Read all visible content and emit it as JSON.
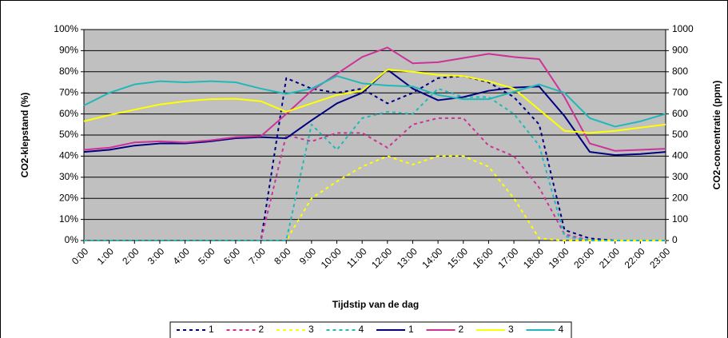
{
  "chart_data": {
    "type": "line",
    "xlabel": "Tijdstip van de dag",
    "ylabel": "CO2-klepstand (%)",
    "y2label": "CO2-concentratie (ppm)",
    "categories": [
      "0:00",
      "1:00",
      "2:00",
      "3:00",
      "4:00",
      "5:00",
      "6:00",
      "7:00",
      "8:00",
      "9:00",
      "10:00",
      "11:00",
      "12:00",
      "13:00",
      "14:00",
      "15:00",
      "16:00",
      "17:00",
      "18:00",
      "19:00",
      "20:00",
      "21:00",
      "22:00",
      "23:00"
    ],
    "ylim": [
      0,
      100
    ],
    "yticks": [
      {
        "value": 0,
        "label": "0%"
      },
      {
        "value": 10,
        "label": "10%"
      },
      {
        "value": 20,
        "label": "20%"
      },
      {
        "value": 30,
        "label": "30%"
      },
      {
        "value": 40,
        "label": "40%"
      },
      {
        "value": 50,
        "label": "50%"
      },
      {
        "value": 60,
        "label": "60%"
      },
      {
        "value": 70,
        "label": "70%"
      },
      {
        "value": 80,
        "label": "80%"
      },
      {
        "value": 90,
        "label": "90%"
      },
      {
        "value": 100,
        "label": "100%"
      }
    ],
    "y2lim": [
      0,
      1000
    ],
    "y2ticks": [
      0,
      100,
      200,
      300,
      400,
      500,
      600,
      700,
      800,
      900,
      1000
    ],
    "grid": true,
    "background": "#c0c0c0",
    "legend": "bottom",
    "series": [
      {
        "name": "1",
        "color": "#000080",
        "line_style": "dashed",
        "values": [
          0,
          0,
          0,
          0,
          0,
          0,
          0,
          0,
          77,
          72,
          70,
          72,
          65,
          70,
          77,
          78,
          75,
          68,
          55,
          5,
          1,
          0,
          0,
          0
        ]
      },
      {
        "name": "2",
        "color": "#cc3399",
        "line_style": "dashed",
        "values": [
          0,
          0,
          0,
          0,
          0,
          0,
          0,
          0,
          50,
          47,
          51,
          51,
          44,
          55,
          58,
          58,
          45,
          40,
          25,
          3,
          0,
          0,
          0,
          0
        ]
      },
      {
        "name": "3",
        "color": "#ffff00",
        "line_style": "dashed",
        "values": [
          0,
          0,
          0,
          0,
          0,
          0,
          0,
          0,
          0,
          20,
          28,
          35,
          40,
          36,
          40,
          40,
          35,
          20,
          1,
          0,
          0,
          0,
          0,
          0
        ]
      },
      {
        "name": "4",
        "color": "#20b8b8",
        "line_style": "dashed",
        "values": [
          0,
          0,
          0,
          0,
          0,
          0,
          0,
          0,
          0,
          55,
          43,
          58,
          61,
          60,
          72,
          68,
          68,
          60,
          45,
          2,
          0,
          0,
          0,
          0
        ]
      },
      {
        "name": "1",
        "color": "#000080",
        "line_style": "solid",
        "axis": "y2",
        "values": [
          420,
          430,
          450,
          460,
          460,
          470,
          485,
          490,
          485,
          570,
          650,
          700,
          810,
          720,
          665,
          680,
          710,
          725,
          730,
          590,
          420,
          405,
          410,
          420
        ]
      },
      {
        "name": "2",
        "color": "#cc3399",
        "line_style": "solid",
        "axis": "y2",
        "values": [
          430,
          440,
          465,
          470,
          465,
          475,
          490,
          495,
          600,
          710,
          790,
          870,
          915,
          840,
          845,
          865,
          885,
          870,
          860,
          680,
          460,
          425,
          430,
          435
        ]
      },
      {
        "name": "3",
        "color": "#ffff00",
        "line_style": "solid",
        "axis": "y2",
        "values": [
          565,
          595,
          620,
          645,
          660,
          670,
          672,
          660,
          610,
          650,
          690,
          710,
          810,
          800,
          785,
          780,
          755,
          720,
          620,
          520,
          510,
          520,
          535,
          550
        ]
      },
      {
        "name": "4",
        "color": "#20b8b8",
        "line_style": "solid",
        "axis": "y2",
        "values": [
          640,
          700,
          740,
          755,
          750,
          755,
          750,
          720,
          695,
          720,
          780,
          745,
          735,
          730,
          690,
          670,
          670,
          705,
          740,
          700,
          580,
          540,
          565,
          600
        ]
      }
    ]
  }
}
